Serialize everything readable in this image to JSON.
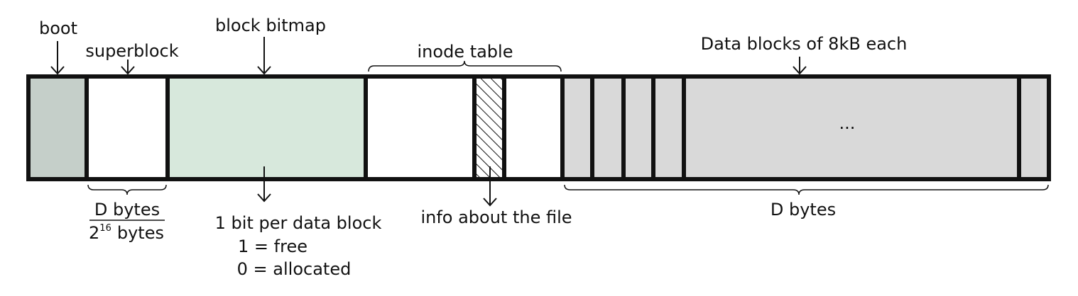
{
  "labels": {
    "boot": "boot",
    "superblock": "superblock",
    "block_bitmap": "block bitmap",
    "inode_table": "inode table",
    "data_blocks": "Data blocks of 8kB each",
    "ellipsis": "...",
    "superblock_size_numerator": "D bytes",
    "superblock_size_denominator_base": "2",
    "superblock_size_denominator_exponent": "16",
    "superblock_size_denominator_unit": "bytes",
    "bitmap_desc_line1": "1 bit per data block",
    "bitmap_desc_line2": "1 = free",
    "bitmap_desc_line3": "0 = allocated",
    "inode_desc": "info about the file",
    "data_size": "D bytes"
  },
  "colors": {
    "boot_fill": "#c5cfc9",
    "bitmap_fill": "#d7e8dc",
    "data_fill": "#d9d9d9",
    "superblock_fill": "#ffffff",
    "inode_fill": "#ffffff",
    "stroke": "#111111"
  }
}
